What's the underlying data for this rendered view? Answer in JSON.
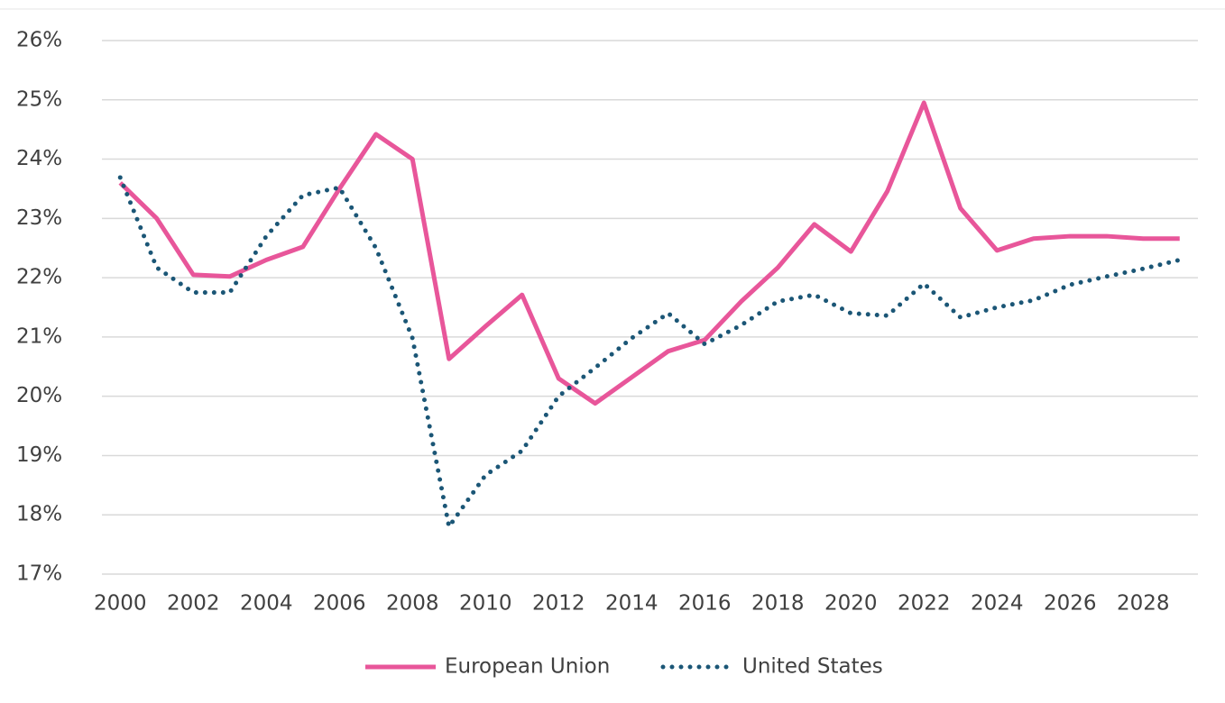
{
  "chart_data": {
    "type": "line",
    "x": [
      2000,
      2001,
      2002,
      2003,
      2004,
      2005,
      2006,
      2007,
      2008,
      2009,
      2010,
      2011,
      2012,
      2013,
      2014,
      2015,
      2016,
      2017,
      2018,
      2019,
      2020,
      2021,
      2022,
      2023,
      2024,
      2025,
      2026,
      2027,
      2028,
      2029
    ],
    "series": [
      {
        "name": "European Union",
        "color": "#e8569a",
        "style": "solid",
        "values": [
          23.6,
          23.0,
          22.05,
          22.02,
          22.3,
          22.52,
          23.5,
          24.42,
          24.0,
          20.63,
          21.18,
          21.71,
          20.3,
          19.88,
          20.32,
          20.76,
          20.95,
          21.6,
          22.17,
          22.9,
          22.44,
          23.46,
          24.95,
          23.17,
          22.46,
          22.66,
          22.7,
          22.7,
          22.66,
          22.66
        ]
      },
      {
        "name": "United States",
        "color": "#1b5676",
        "style": "dotted",
        "values": [
          23.69,
          22.17,
          21.75,
          21.75,
          22.7,
          23.39,
          23.52,
          22.5,
          20.98,
          17.8,
          18.67,
          19.08,
          20.0,
          20.48,
          20.98,
          21.4,
          20.88,
          21.2,
          21.6,
          21.71,
          21.4,
          21.36,
          21.9,
          21.33,
          21.5,
          21.62,
          21.88,
          22.02,
          22.15,
          22.3
        ]
      }
    ],
    "xlim": [
      1999.5,
      2029.5
    ],
    "xticks": [
      2000,
      2002,
      2004,
      2006,
      2008,
      2010,
      2012,
      2014,
      2016,
      2018,
      2020,
      2022,
      2024,
      2026,
      2028
    ],
    "ylim": [
      17,
      26
    ],
    "yticks": [
      {
        "value": 17,
        "label": "17%"
      },
      {
        "value": 18,
        "label": "18%"
      },
      {
        "value": 19,
        "label": "19%"
      },
      {
        "value": 20,
        "label": "20%"
      },
      {
        "value": 21,
        "label": "21%"
      },
      {
        "value": 22,
        "label": "22%"
      },
      {
        "value": 23,
        "label": "23%"
      },
      {
        "value": 24,
        "label": "24%"
      },
      {
        "value": 25,
        "label": "25%"
      },
      {
        "value": 26,
        "label": "26%"
      }
    ],
    "grid": true,
    "legend": "bottom"
  }
}
